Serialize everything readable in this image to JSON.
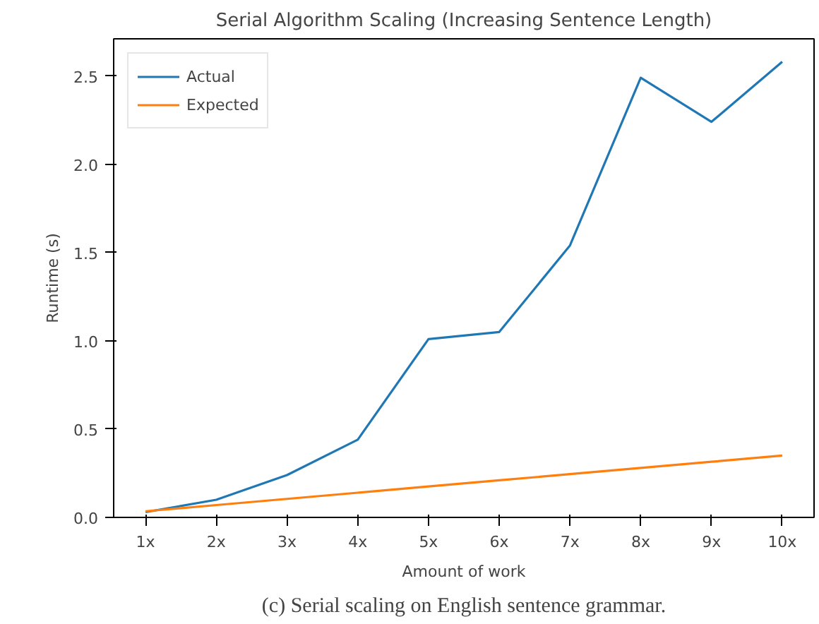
{
  "chart_data": {
    "type": "line",
    "title": "Serial Algorithm Scaling (Increasing Sentence Length)",
    "xlabel": "Amount of work",
    "ylabel": "Runtime (s)",
    "categories": [
      "1x",
      "2x",
      "3x",
      "4x",
      "5x",
      "6x",
      "7x",
      "8x",
      "9x",
      "10x"
    ],
    "series": [
      {
        "name": "Actual",
        "color": "#1f77b4",
        "values": [
          0.03,
          0.1,
          0.24,
          0.44,
          1.01,
          1.05,
          1.54,
          2.49,
          2.24,
          2.58
        ]
      },
      {
        "name": "Expected",
        "color": "#ff7f0e",
        "values": [
          0.035,
          0.07,
          0.105,
          0.14,
          0.175,
          0.21,
          0.245,
          0.28,
          0.315,
          0.35
        ]
      }
    ],
    "ylim": [
      0,
      2.71
    ],
    "yticks": [
      {
        "value": 0,
        "label": "0.0"
      },
      {
        "value": 0.5,
        "label": "0.5"
      },
      {
        "value": 1,
        "label": "1.0"
      },
      {
        "value": 1.5,
        "label": "1.5"
      },
      {
        "value": 2,
        "label": "2.0"
      },
      {
        "value": 2.5,
        "label": "2.5"
      }
    ],
    "legend": "top left",
    "grid": false,
    "marker": "none",
    "line_style": "solid",
    "annotations": [
      "(c) Serial scaling on English sentence grammar."
    ]
  }
}
